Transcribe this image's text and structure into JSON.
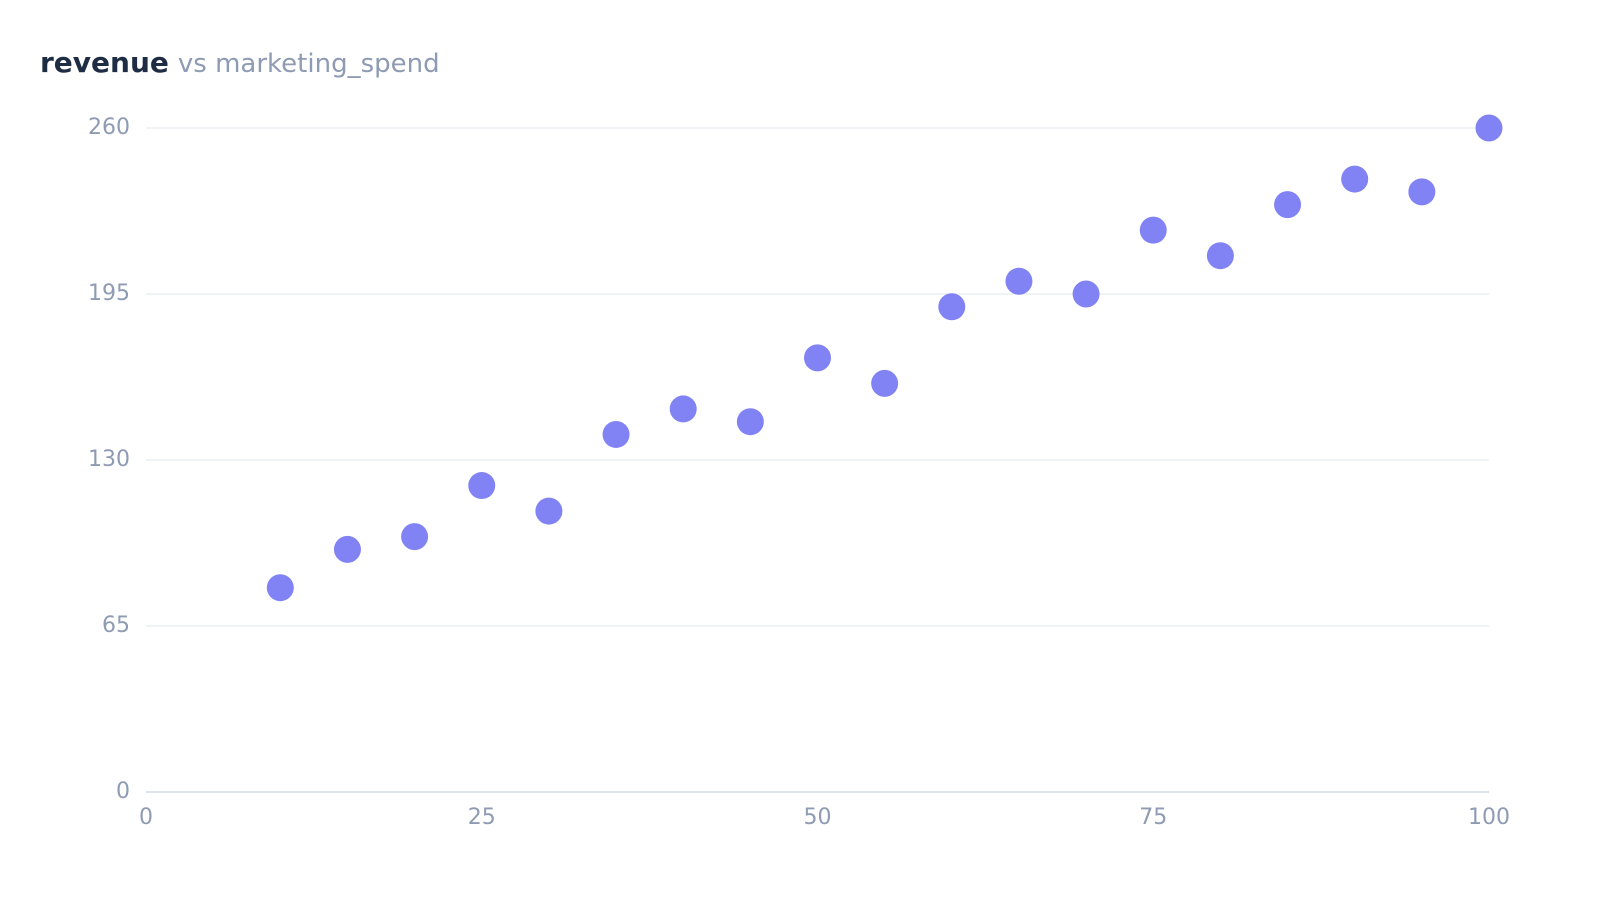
{
  "chart_data": {
    "type": "scatter",
    "title": "revenue",
    "subtitle": "vs marketing_spend",
    "x": [
      10,
      15,
      20,
      25,
      30,
      35,
      40,
      45,
      50,
      55,
      60,
      65,
      70,
      75,
      80,
      85,
      90,
      95,
      100
    ],
    "series": [
      {
        "name": "revenue",
        "color": "#8183f4",
        "values": [
          80,
          95,
          100,
          120,
          110,
          140,
          150,
          145,
          170,
          160,
          190,
          200,
          195,
          220,
          210,
          230,
          240,
          235,
          260
        ]
      }
    ],
    "xlim": [
      0,
      100
    ],
    "xticks": [
      0,
      25,
      50,
      75,
      100
    ],
    "ylim": [
      0,
      260
    ],
    "yticks": [
      0,
      65,
      130,
      195,
      260
    ],
    "grid": true
  }
}
